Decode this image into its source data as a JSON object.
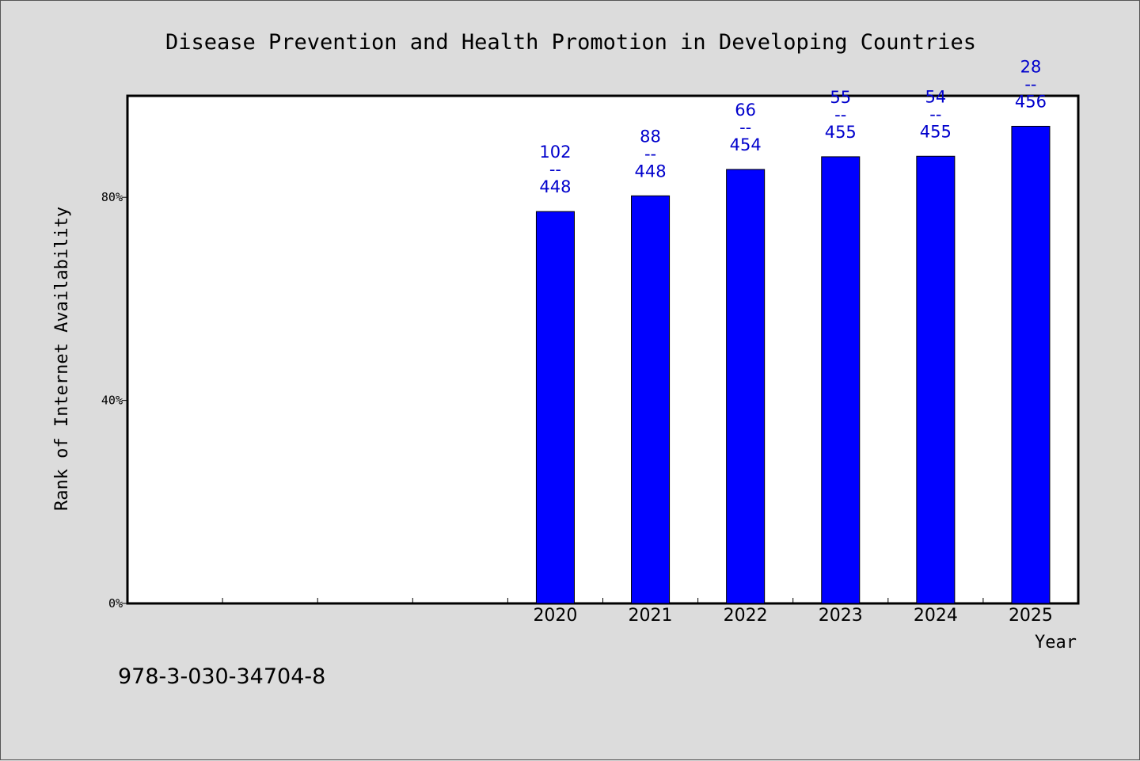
{
  "chart_data": {
    "type": "bar",
    "title": "Disease Prevention and Health Promotion in Developing Countries",
    "xlabel": "Year",
    "ylabel": "Rank of Internet Availability",
    "y_tick_labels": [
      "0%",
      "40%",
      "80%"
    ],
    "y_ticks": [
      0,
      40,
      80
    ],
    "ylim": [
      0,
      100
    ],
    "categories": [
      "",
      "",
      "",
      "",
      "2020",
      "2021",
      "2022",
      "2023",
      "2024",
      "2025"
    ],
    "values": [
      null,
      null,
      null,
      null,
      77.2,
      80.3,
      85.5,
      88.0,
      88.1,
      94.0
    ],
    "data_labels": [
      null,
      null,
      null,
      null,
      {
        "top": "102",
        "sep": "--",
        "bottom": "448"
      },
      {
        "top": "88",
        "sep": "--",
        "bottom": "448"
      },
      {
        "top": "66",
        "sep": "--",
        "bottom": "454"
      },
      {
        "top": "55",
        "sep": "--",
        "bottom": "455"
      },
      {
        "top": "54",
        "sep": "--",
        "bottom": "455"
      },
      {
        "top": "28",
        "sep": "--",
        "bottom": "456"
      }
    ],
    "bar_color": "#0000ff",
    "label_color": "#0000cc",
    "grid": false,
    "legend": "none"
  },
  "footer": {
    "isbn": "978-3-030-34704-8"
  }
}
